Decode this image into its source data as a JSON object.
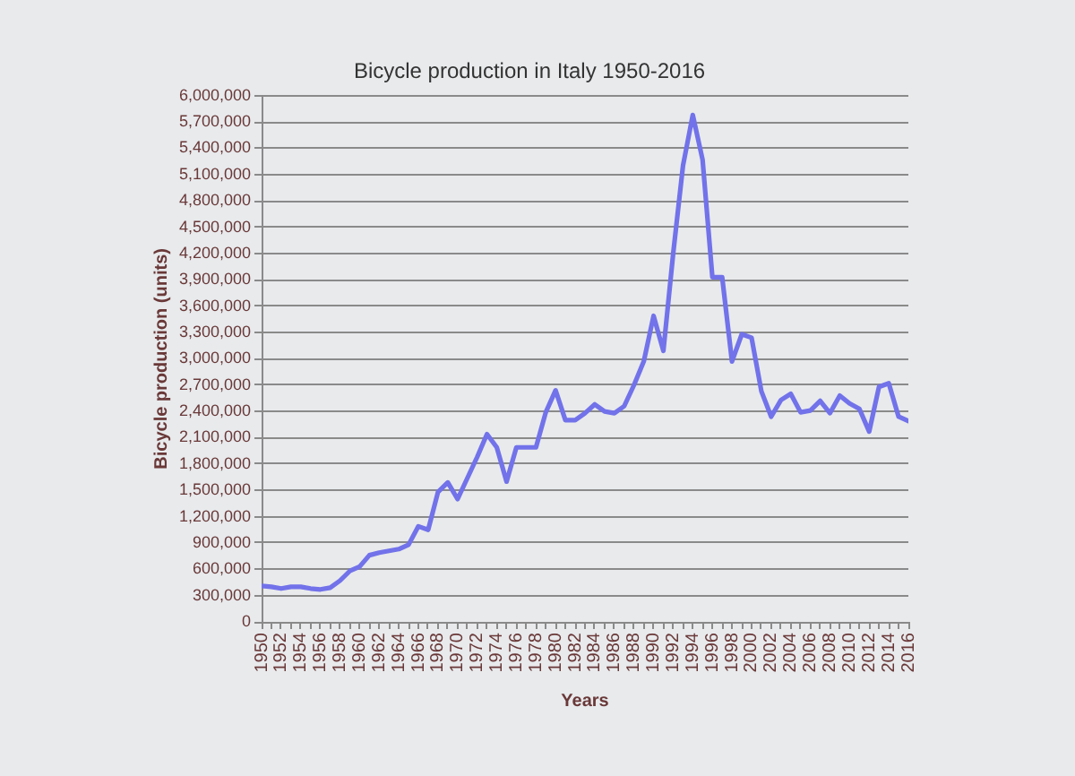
{
  "chart_data": {
    "type": "line",
    "title": "Bicycle production in Italy 1950-2016",
    "xlabel": "Years",
    "ylabel": "Bicycle production (units)",
    "x": [
      1950,
      1951,
      1952,
      1953,
      1954,
      1955,
      1956,
      1957,
      1958,
      1959,
      1960,
      1961,
      1962,
      1963,
      1964,
      1965,
      1966,
      1967,
      1968,
      1969,
      1970,
      1971,
      1972,
      1973,
      1974,
      1975,
      1976,
      1977,
      1978,
      1979,
      1980,
      1981,
      1982,
      1983,
      1984,
      1985,
      1986,
      1987,
      1988,
      1989,
      1990,
      1991,
      1992,
      1993,
      1994,
      1995,
      1996,
      1997,
      1998,
      1999,
      2000,
      2001,
      2002,
      2003,
      2004,
      2005,
      2006,
      2007,
      2008,
      2009,
      2010,
      2011,
      2012,
      2013,
      2014,
      2015,
      2016
    ],
    "values": [
      410000,
      400000,
      380000,
      400000,
      400000,
      380000,
      370000,
      390000,
      470000,
      580000,
      630000,
      760000,
      790000,
      810000,
      830000,
      880000,
      1090000,
      1050000,
      1480000,
      1590000,
      1400000,
      1640000,
      1880000,
      2140000,
      1990000,
      1600000,
      1990000,
      1990000,
      1990000,
      2390000,
      2640000,
      2300000,
      2300000,
      2380000,
      2480000,
      2400000,
      2380000,
      2460000,
      2700000,
      2970000,
      3490000,
      3090000,
      4200000,
      5200000,
      5780000,
      5270000,
      3930000,
      3930000,
      2970000,
      3280000,
      3240000,
      2630000,
      2340000,
      2530000,
      2600000,
      2390000,
      2410000,
      2520000,
      2380000,
      2580000,
      2490000,
      2430000,
      2170000,
      2680000,
      2720000,
      2340000,
      2290000
    ],
    "color": "#7272ea",
    "xlim": [
      1950,
      2016
    ],
    "xticks": [
      1950,
      {
        "value": 1951,
        "label": null
      },
      1952,
      {
        "value": 1953,
        "label": null
      },
      1954,
      {
        "value": 1955,
        "label": null
      },
      1956,
      {
        "value": 1957,
        "label": null
      },
      1958,
      {
        "value": 1959,
        "label": null
      },
      1960,
      {
        "value": 1961,
        "label": null
      },
      1962,
      {
        "value": 1963,
        "label": null
      },
      1964,
      {
        "value": 1965,
        "label": null
      },
      1966,
      {
        "value": 1967,
        "label": null
      },
      1968,
      {
        "value": 1969,
        "label": null
      },
      1970,
      {
        "value": 1971,
        "label": null
      },
      1972,
      {
        "value": 1973,
        "label": null
      },
      1974,
      {
        "value": 1975,
        "label": null
      },
      1976,
      {
        "value": 1977,
        "label": null
      },
      1978,
      {
        "value": 1979,
        "label": null
      },
      1980,
      {
        "value": 1981,
        "label": null
      },
      1982,
      {
        "value": 1983,
        "label": null
      },
      1984,
      {
        "value": 1985,
        "label": null
      },
      1986,
      {
        "value": 1987,
        "label": null
      },
      1988,
      {
        "value": 1989,
        "label": null
      },
      1990,
      {
        "value": 1991,
        "label": null
      },
      1992,
      {
        "value": 1993,
        "label": null
      },
      1994,
      {
        "value": 1995,
        "label": null
      },
      1996,
      {
        "value": 1997,
        "label": null
      },
      1998,
      {
        "value": 1999,
        "label": null
      },
      2000,
      {
        "value": 2001,
        "label": null
      },
      2002,
      {
        "value": 2003,
        "label": null
      },
      2004,
      {
        "value": 2005,
        "label": null
      },
      2006,
      {
        "value": 2007,
        "label": null
      },
      2008,
      {
        "value": 2009,
        "label": null
      },
      2010,
      {
        "value": 2011,
        "label": null
      },
      2012,
      {
        "value": 2013,
        "label": null
      },
      2014,
      {
        "value": 2015,
        "label": null
      },
      2016
    ],
    "ylim": [
      0,
      6000000
    ],
    "yticks": [
      0,
      {
        "value": 300000,
        "label": "300,000"
      },
      {
        "value": 600000,
        "label": "600,000"
      },
      {
        "value": 900000,
        "label": "900,000"
      },
      {
        "value": 1200000,
        "label": "1,200,000"
      },
      {
        "value": 1500000,
        "label": "1,500,000"
      },
      {
        "value": 1800000,
        "label": "1,800,000"
      },
      {
        "value": 2100000,
        "label": "2,100,000"
      },
      {
        "value": 2400000,
        "label": "2,400,000"
      },
      {
        "value": 2700000,
        "label": "2,700,000"
      },
      {
        "value": 3000000,
        "label": "3,000,000"
      },
      {
        "value": 3300000,
        "label": "3,300,000"
      },
      {
        "value": 3600000,
        "label": "3,600,000"
      },
      {
        "value": 3900000,
        "label": "3,900,000"
      },
      {
        "value": 4200000,
        "label": "4,200,000"
      },
      {
        "value": 4500000,
        "label": "4,500,000"
      },
      {
        "value": 4800000,
        "label": "4,800,000"
      },
      {
        "value": 5100000,
        "label": "5,100,000"
      },
      {
        "value": 5400000,
        "label": "5,400,000"
      },
      {
        "value": 5700000,
        "label": "5,700,000"
      },
      {
        "value": 6000000,
        "label": "6,000,000"
      }
    ],
    "grid": "y"
  }
}
